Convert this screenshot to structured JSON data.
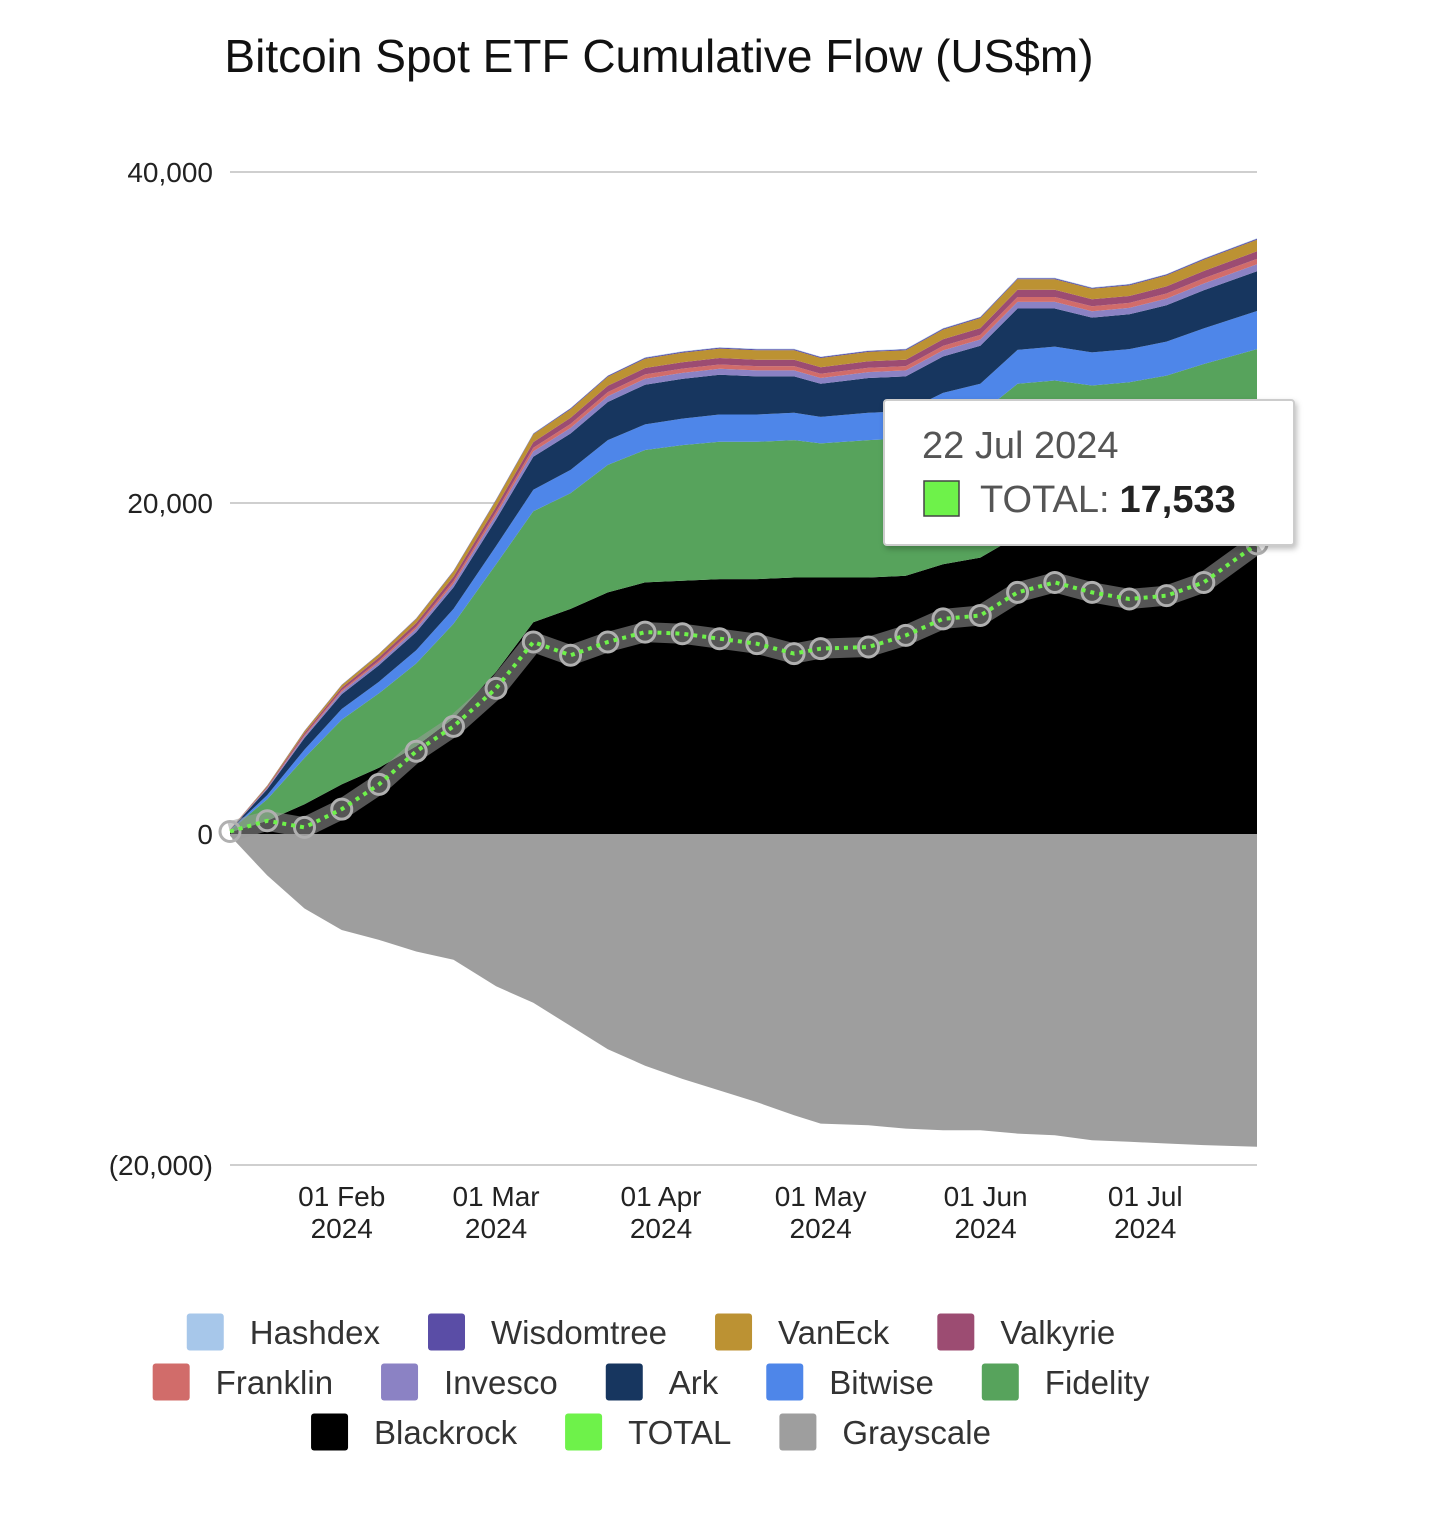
{
  "chart_data": {
    "type": "area",
    "stacked": true,
    "title": "Bitcoin Spot ETF Cumulative Flow (US$m)",
    "xlabel": "",
    "ylabel": "",
    "ylim": [
      -20000,
      40000
    ],
    "yticks": [
      40000,
      20000,
      0,
      -20000
    ],
    "ytick_labels": [
      "40,000",
      "20,000",
      "0",
      "(20,000)"
    ],
    "xlim": [
      "2024-01-11",
      "2024-07-22"
    ],
    "xticks": [
      {
        "date": "2024-02-01",
        "line1": "01 Feb",
        "line2": "2024"
      },
      {
        "date": "2024-03-01",
        "line1": "01 Mar",
        "line2": "2024"
      },
      {
        "date": "2024-04-01",
        "line1": "01 Apr",
        "line2": "2024"
      },
      {
        "date": "2024-05-01",
        "line1": "01 May",
        "line2": "2024"
      },
      {
        "date": "2024-06-01",
        "line1": "01 Jun",
        "line2": "2024"
      },
      {
        "date": "2024-07-01",
        "line1": "01 Jul",
        "line2": "2024"
      }
    ],
    "grid": true,
    "legend_position": "bottom",
    "dates": [
      "2024-01-11",
      "2024-01-18",
      "2024-01-25",
      "2024-02-01",
      "2024-02-08",
      "2024-02-15",
      "2024-02-22",
      "2024-03-01",
      "2024-03-08",
      "2024-03-15",
      "2024-03-22",
      "2024-03-29",
      "2024-04-05",
      "2024-04-12",
      "2024-04-19",
      "2024-04-26",
      "2024-05-01",
      "2024-05-10",
      "2024-05-17",
      "2024-05-24",
      "2024-05-31",
      "2024-06-07",
      "2024-06-14",
      "2024-06-21",
      "2024-06-28",
      "2024-07-05",
      "2024-07-12",
      "2024-07-22"
    ],
    "series": [
      {
        "name": "Blackrock",
        "color": "#000000",
        "values": [
          100,
          800,
          1800,
          3000,
          4000,
          5300,
          7000,
          9800,
          12800,
          13600,
          14600,
          15200,
          15300,
          15400,
          15400,
          15500,
          15500,
          15500,
          15600,
          16300,
          16700,
          18000,
          18400,
          18200,
          18400,
          18600,
          19000,
          19800
        ]
      },
      {
        "name": "Fidelity",
        "color": "#57a35c",
        "values": [
          100,
          1300,
          2800,
          3900,
          4500,
          5000,
          5700,
          6500,
          6700,
          7000,
          7700,
          8000,
          8200,
          8300,
          8300,
          8300,
          8100,
          8300,
          8300,
          8600,
          8700,
          9200,
          9000,
          8900,
          8900,
          9100,
          9400,
          9500
        ]
      },
      {
        "name": "Bitwise",
        "color": "#4e86e9",
        "values": [
          20,
          250,
          500,
          650,
          700,
          800,
          900,
          1100,
          1300,
          1400,
          1500,
          1550,
          1600,
          1650,
          1650,
          1650,
          1600,
          1650,
          1650,
          1750,
          1800,
          2050,
          2050,
          2000,
          2000,
          2050,
          2150,
          2300
        ]
      },
      {
        "name": "Ark",
        "color": "#17365f",
        "values": [
          20,
          350,
          700,
          900,
          1000,
          1100,
          1300,
          1600,
          2000,
          2200,
          2300,
          2400,
          2400,
          2400,
          2300,
          2200,
          2000,
          2100,
          2100,
          2200,
          2300,
          2500,
          2300,
          2100,
          2100,
          2200,
          2300,
          2400
        ]
      },
      {
        "name": "Invesco",
        "color": "#8b82c4",
        "values": [
          10,
          60,
          110,
          140,
          170,
          200,
          230,
          280,
          320,
          340,
          350,
          360,
          360,
          360,
          360,
          360,
          350,
          360,
          360,
          370,
          380,
          400,
          400,
          390,
          390,
          400,
          410,
          420
        ]
      },
      {
        "name": "Franklin",
        "color": "#d16c6a",
        "values": [
          5,
          40,
          70,
          90,
          110,
          130,
          160,
          190,
          220,
          240,
          250,
          260,
          260,
          260,
          260,
          260,
          260,
          260,
          260,
          270,
          280,
          300,
          300,
          300,
          300,
          310,
          320,
          330
        ]
      },
      {
        "name": "Valkyrie",
        "color": "#9c4c72",
        "values": [
          5,
          60,
          120,
          160,
          190,
          220,
          260,
          300,
          340,
          370,
          380,
          390,
          390,
          390,
          390,
          390,
          390,
          390,
          390,
          400,
          410,
          430,
          430,
          420,
          420,
          430,
          440,
          460
        ]
      },
      {
        "name": "VanEck",
        "color": "#bc9233",
        "values": [
          10,
          60,
          120,
          160,
          200,
          250,
          320,
          400,
          470,
          520,
          550,
          560,
          570,
          570,
          570,
          570,
          560,
          570,
          570,
          590,
          600,
          640,
          640,
          630,
          640,
          660,
          680,
          700
        ]
      },
      {
        "name": "Wisdomtree",
        "color": "#5a4da6",
        "values": [
          2,
          10,
          15,
          20,
          25,
          30,
          35,
          40,
          45,
          50,
          55,
          60,
          60,
          60,
          60,
          60,
          60,
          60,
          60,
          60,
          60,
          60,
          60,
          60,
          60,
          60,
          60,
          60
        ]
      },
      {
        "name": "Hashdex",
        "color": "#a7c7ea",
        "values": [
          1,
          3,
          5,
          6,
          8,
          10,
          12,
          14,
          16,
          18,
          20,
          22,
          24,
          25,
          25,
          25,
          25,
          25,
          26,
          26,
          26,
          27,
          27,
          27,
          27,
          28,
          28,
          29
        ]
      },
      {
        "name": "Grayscale",
        "color": "#9e9e9e",
        "values": [
          -100,
          -2500,
          -4500,
          -5800,
          -6400,
          -7100,
          -7600,
          -9200,
          -10200,
          -11600,
          -13000,
          -14000,
          -14800,
          -15500,
          -16200,
          -17000,
          -17500,
          -17600,
          -17800,
          -17900,
          -17900,
          -18100,
          -18200,
          -18500,
          -18600,
          -18700,
          -18800,
          -18900
        ]
      },
      {
        "name": "TOTAL",
        "color": "#6ef24a",
        "type": "line",
        "values": [
          150,
          800,
          400,
          1500,
          3000,
          5000,
          6500,
          8800,
          11600,
          10800,
          11600,
          12200,
          12100,
          11800,
          11500,
          10900,
          11200,
          11300,
          12000,
          13000,
          13200,
          14600,
          15200,
          14600,
          14200,
          14400,
          15200,
          17533
        ]
      }
    ],
    "legend": [
      [
        "Hashdex",
        "Wisdomtree",
        "VanEck",
        "Valkyrie"
      ],
      [
        "Franklin",
        "Invesco",
        "Ark",
        "Bitwise",
        "Fidelity"
      ],
      [
        "Blackrock",
        "TOTAL",
        "Grayscale"
      ]
    ],
    "tooltip": {
      "date": "22 Jul 2024",
      "series": "TOTAL",
      "label": "TOTAL:",
      "value": "17,533",
      "color": "#6ef24a"
    }
  }
}
